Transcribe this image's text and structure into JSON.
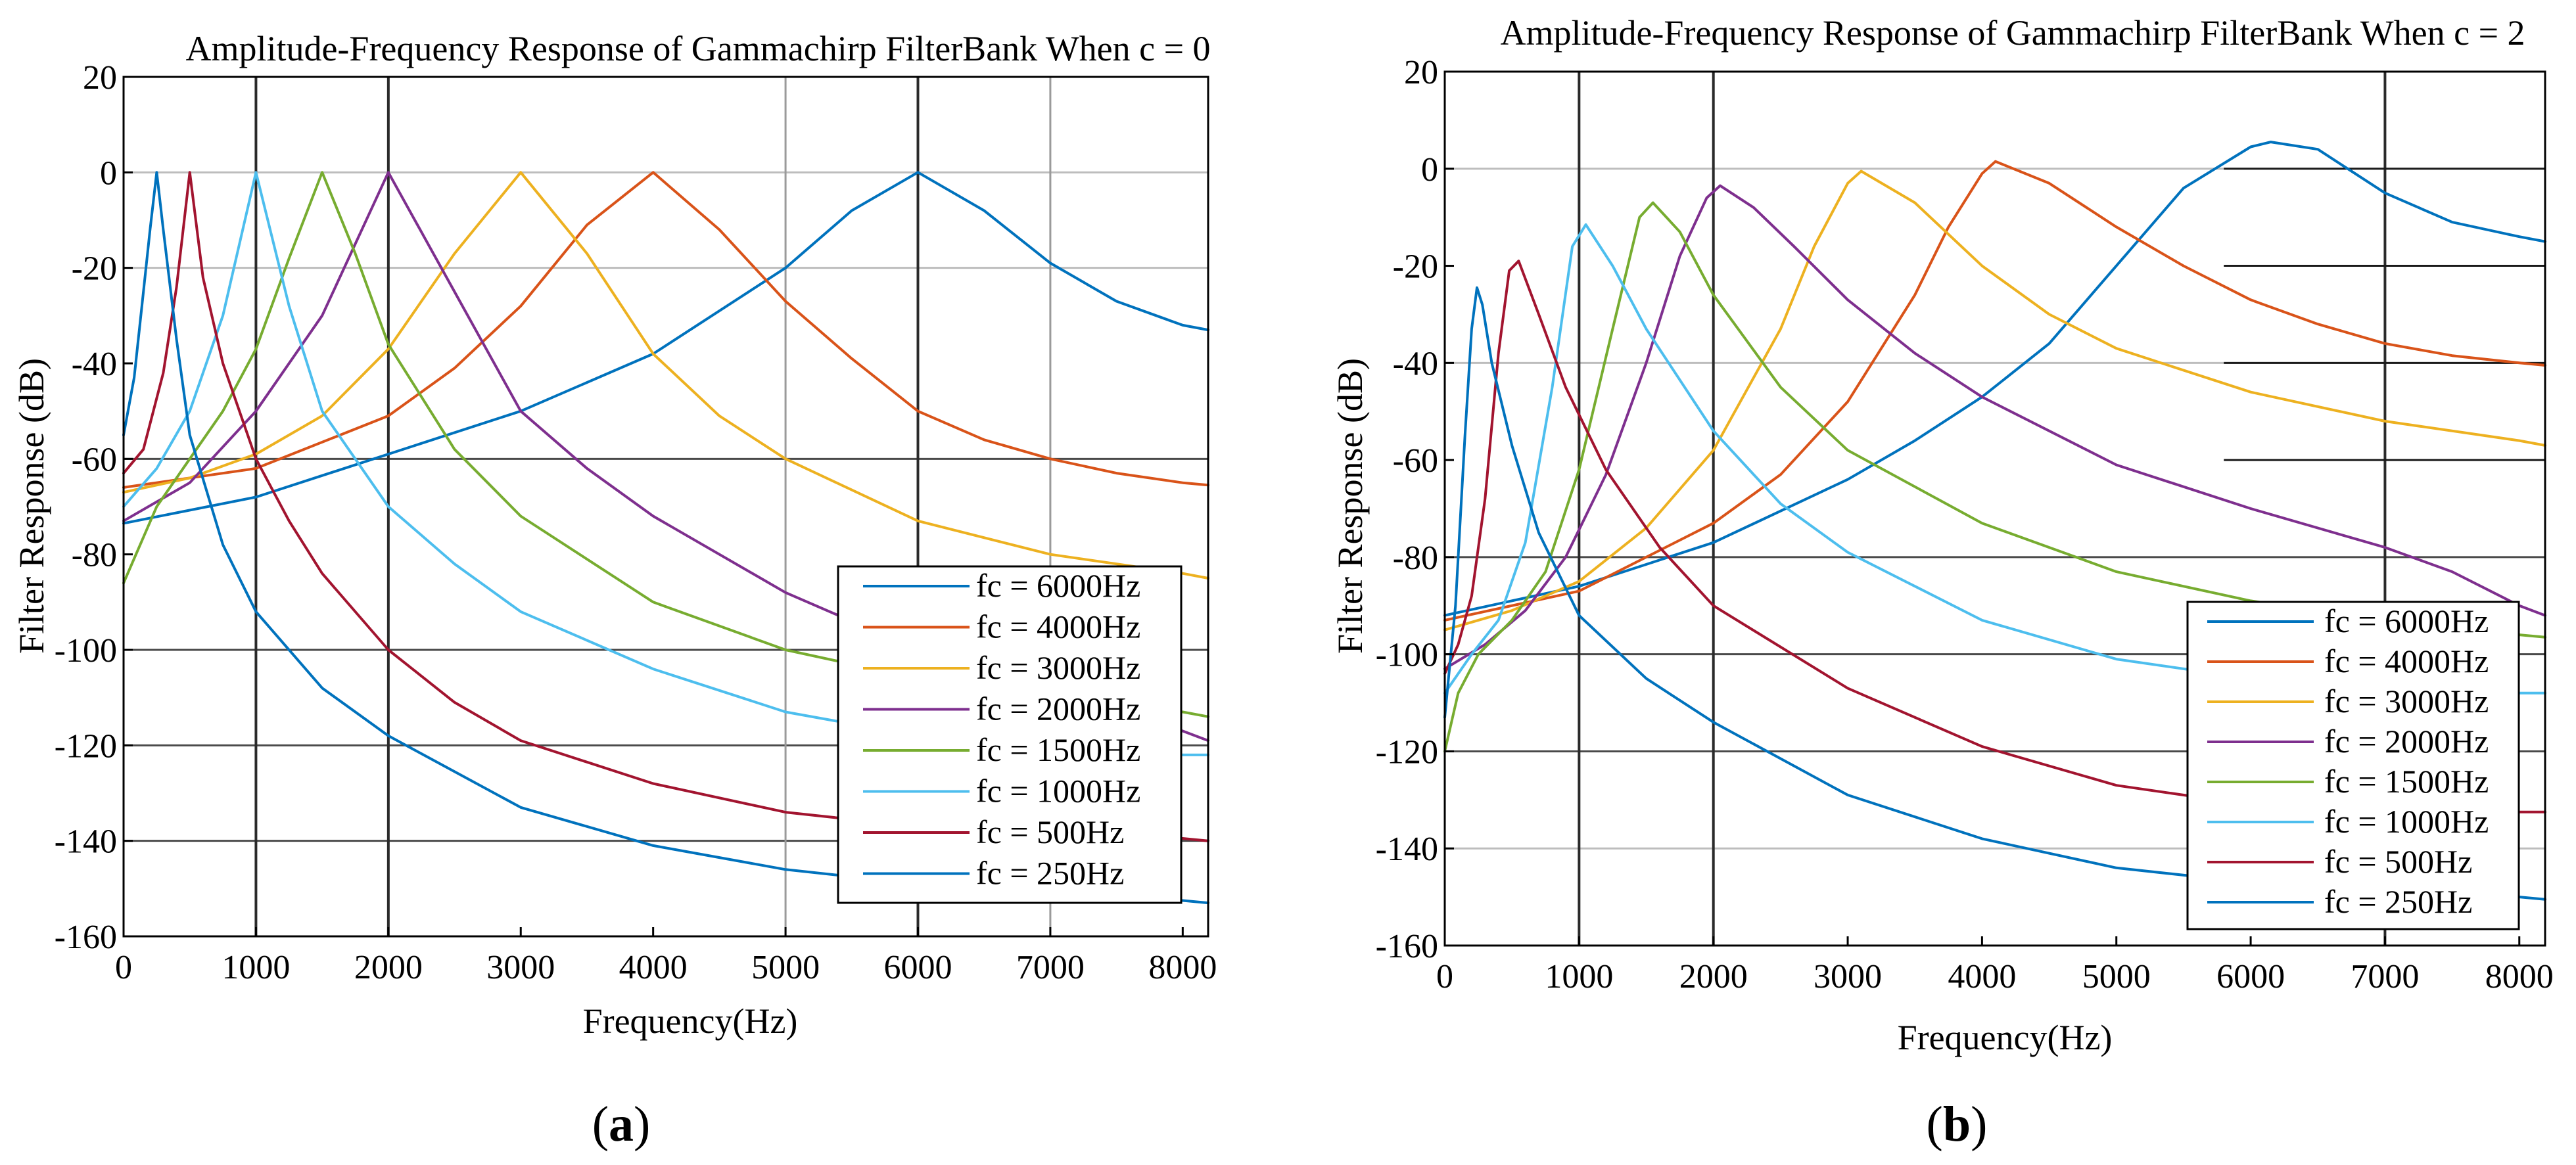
{
  "chart_data": [
    {
      "type": "line",
      "title": "Amplitude-Frequency Response of Gammachirp FilterBank When c = 0",
      "xlabel": "Frequency(Hz)",
      "ylabel": "Filter Response (dB)",
      "panel_label": {
        "open": "(",
        "letter": "a",
        "close": ")"
      },
      "xlim": [
        0,
        8192
      ],
      "ylim": [
        -160,
        20
      ],
      "xticks": [
        0,
        1000,
        2000,
        3000,
        4000,
        5000,
        6000,
        7000,
        8000
      ],
      "xtick_labels": [
        "0",
        "1000",
        "2000",
        "3000",
        "4000",
        "5000",
        "6000",
        "7000",
        "8000"
      ],
      "yticks": [
        20,
        0,
        -20,
        -40,
        -60,
        -80,
        -100,
        -120,
        -140,
        -160
      ],
      "ytick_labels": [
        "20",
        "0",
        "-20",
        "-40",
        "-60",
        "-80",
        "-100",
        "-120",
        "-140",
        "-160"
      ],
      "grid": true,
      "legend_position": "bottom-right",
      "series": [
        {
          "name": "fc = 6000Hz",
          "color": "#0072BD",
          "x": [
            0,
            1000,
            2000,
            3000,
            4000,
            5000,
            5500,
            6000,
            6500,
            7000,
            7500,
            8000,
            8192
          ],
          "y": [
            -73.5,
            -68,
            -59,
            -50,
            -38,
            -20,
            -8,
            0,
            -8,
            -19,
            -27,
            -32,
            -33
          ]
        },
        {
          "name": "fc = 4000Hz",
          "color": "#D95319",
          "x": [
            0,
            1000,
            2000,
            2500,
            3000,
            3500,
            4000,
            4500,
            5000,
            5500,
            6000,
            6500,
            7000,
            7500,
            8000,
            8192
          ],
          "y": [
            -66,
            -62,
            -51,
            -41,
            -28,
            -11,
            0,
            -12,
            -27,
            -39,
            -50,
            -56,
            -60,
            -63,
            -65,
            -65.5
          ]
        },
        {
          "name": "fc = 3000Hz",
          "color": "#EDB120",
          "x": [
            0,
            500,
            1000,
            1500,
            2000,
            2500,
            3000,
            3500,
            4000,
            4500,
            5000,
            6000,
            7000,
            8000,
            8192
          ],
          "y": [
            -67,
            -64,
            -59,
            -51,
            -37,
            -17,
            0,
            -17,
            -38,
            -51,
            -60,
            -73,
            -80,
            -84,
            -85
          ]
        },
        {
          "name": "fc = 2000Hz",
          "color": "#7E2F8E",
          "x": [
            0,
            500,
            1000,
            1500,
            2000,
            2500,
            3000,
            3500,
            4000,
            5000,
            6000,
            7000,
            8000,
            8192
          ],
          "y": [
            -73,
            -65,
            -50,
            -30,
            0,
            -25,
            -50,
            -62,
            -72,
            -88,
            -100,
            -110,
            -117,
            -119
          ]
        },
        {
          "name": "fc = 1500Hz",
          "color": "#77AC30",
          "x": [
            0,
            250,
            500,
            750,
            1000,
            1250,
            1500,
            1750,
            2000,
            2500,
            3000,
            4000,
            5000,
            6000,
            7000,
            8000,
            8192
          ],
          "y": [
            -86,
            -70,
            -60,
            -50,
            -37,
            -18,
            0,
            -17,
            -36,
            -58,
            -72,
            -90,
            -100,
            -106,
            -110,
            -113,
            -114
          ]
        },
        {
          "name": "fc = 1000Hz",
          "color": "#4DBEEE",
          "x": [
            0,
            250,
            500,
            750,
            1000,
            1250,
            1500,
            2000,
            2500,
            3000,
            4000,
            5000,
            6000,
            7000,
            8000,
            8192
          ],
          "y": [
            -70,
            -62,
            -50,
            -30,
            0,
            -28,
            -50,
            -70,
            -82,
            -92,
            -104,
            -113,
            -118,
            -121,
            -122,
            -122
          ]
        },
        {
          "name": "fc = 500Hz",
          "color": "#A2142F",
          "x": [
            0,
            150,
            300,
            400,
            500,
            600,
            750,
            1000,
            1250,
            1500,
            2000,
            2500,
            3000,
            4000,
            5000,
            6000,
            7000,
            8000,
            8192
          ],
          "y": [
            -63,
            -58,
            -42,
            -24,
            0,
            -22,
            -40,
            -60,
            -73,
            -84,
            -100,
            -111,
            -119,
            -128,
            -134,
            -137,
            -138.5,
            -139.5,
            -140
          ]
        },
        {
          "name": "fc = 250Hz",
          "color": "#0072BD",
          "x": [
            0,
            80,
            150,
            200,
            250,
            300,
            400,
            500,
            750,
            1000,
            1500,
            2000,
            3000,
            4000,
            5000,
            6000,
            7000,
            8000,
            8192
          ],
          "y": [
            -55,
            -43,
            -25,
            -12,
            0,
            -12,
            -35,
            -55,
            -78,
            -92,
            -108,
            -118,
            -133,
            -141,
            -146,
            -149,
            -151,
            -152.5,
            -153
          ]
        }
      ],
      "legend_entries": [
        "fc = 6000Hz",
        "fc = 4000Hz",
        "fc = 3000Hz",
        "fc = 2000Hz",
        "fc = 1500Hz",
        "fc = 1000Hz",
        "fc = 500Hz",
        "fc = 250Hz"
      ]
    },
    {
      "type": "line",
      "title": "Amplitude-Frequency Response of Gammachirp FilterBank When c = 2",
      "xlabel": "Frequency(Hz)",
      "ylabel": "Filter Response (dB)",
      "panel_label": {
        "open": "(",
        "letter": "b",
        "close": ")"
      },
      "xlim": [
        0,
        8192
      ],
      "ylim": [
        -160,
        20
      ],
      "xticks": [
        0,
        1000,
        2000,
        3000,
        4000,
        5000,
        6000,
        7000,
        8000
      ],
      "xtick_labels": [
        "0",
        "1000",
        "2000",
        "3000",
        "4000",
        "5000",
        "6000",
        "7000",
        "8000"
      ],
      "yticks": [
        20,
        0,
        -20,
        -40,
        -60,
        -80,
        -100,
        -120,
        -140,
        -160
      ],
      "ytick_labels": [
        "20",
        "0",
        "-20",
        "-40",
        "-60",
        "-80",
        "-100",
        "-120",
        "-140",
        "-160"
      ],
      "grid": true,
      "legend_position": "bottom-right",
      "series": [
        {
          "name": "fc = 6000Hz",
          "color": "#0072BD",
          "x": [
            0,
            1000,
            2000,
            3000,
            3500,
            4000,
            4500,
            5000,
            5500,
            6000,
            6150,
            6500,
            7000,
            7500,
            8000,
            8192
          ],
          "y": [
            -92,
            -86,
            -77,
            -64,
            -56,
            -47,
            -36,
            -20,
            -4,
            4.5,
            5.5,
            4,
            -5,
            -11,
            -14,
            -15
          ]
        },
        {
          "name": "fc = 4000Hz",
          "color": "#D95319",
          "x": [
            0,
            1000,
            2000,
            2500,
            3000,
            3500,
            3750,
            4000,
            4100,
            4500,
            5000,
            5500,
            6000,
            6500,
            7000,
            7500,
            8000,
            8192
          ],
          "y": [
            -93,
            -87,
            -73,
            -63,
            -48,
            -26,
            -12,
            -1,
            1.5,
            -3,
            -12,
            -20,
            -27,
            -32,
            -36,
            -38.5,
            -40,
            -40.5
          ]
        },
        {
          "name": "fc = 3000Hz",
          "color": "#EDB120",
          "x": [
            0,
            500,
            1000,
            1500,
            2000,
            2500,
            2750,
            3000,
            3100,
            3500,
            4000,
            4500,
            5000,
            6000,
            7000,
            8000,
            8192
          ],
          "y": [
            -95,
            -91,
            -85,
            -74,
            -58,
            -33,
            -16,
            -3,
            -0.5,
            -7,
            -20,
            -30,
            -37,
            -46,
            -52,
            -56,
            -57
          ]
        },
        {
          "name": "fc = 2000Hz",
          "color": "#7E2F8E",
          "x": [
            0,
            300,
            600,
            900,
            1200,
            1500,
            1750,
            1950,
            2050,
            2300,
            2600,
            3000,
            3500,
            4000,
            5000,
            6000,
            7000,
            7500,
            8000,
            8192
          ],
          "y": [
            -103,
            -98,
            -91,
            -80,
            -63,
            -40,
            -18,
            -6,
            -3.5,
            -8,
            -16,
            -27,
            -38,
            -47,
            -61,
            -70,
            -78,
            -83,
            -90,
            -92
          ]
        },
        {
          "name": "fc = 1500Hz",
          "color": "#77AC30",
          "x": [
            0,
            100,
            250,
            500,
            750,
            1000,
            1250,
            1450,
            1550,
            1750,
            2000,
            2500,
            3000,
            4000,
            5000,
            6000,
            7000,
            8000,
            8192
          ],
          "y": [
            -120,
            -108,
            -100,
            -93,
            -83,
            -62,
            -33,
            -10,
            -7,
            -13,
            -26,
            -45,
            -58,
            -73,
            -83,
            -89,
            -93,
            -96,
            -96.5
          ]
        },
        {
          "name": "fc = 1000Hz",
          "color": "#4DBEEE",
          "x": [
            0,
            200,
            400,
            600,
            800,
            950,
            1050,
            1250,
            1500,
            2000,
            2500,
            3000,
            4000,
            5000,
            6000,
            7000,
            8000,
            8192
          ],
          "y": [
            -108,
            -100,
            -93,
            -77,
            -45,
            -16,
            -11.5,
            -20,
            -33,
            -54,
            -69,
            -79,
            -93,
            -101,
            -105,
            -107,
            -108,
            -108
          ]
        },
        {
          "name": "fc = 500Hz",
          "color": "#A2142F",
          "x": [
            0,
            100,
            200,
            300,
            400,
            480,
            550,
            700,
            900,
            1200,
            1600,
            2000,
            3000,
            4000,
            5000,
            6000,
            7000,
            8000,
            8192
          ],
          "y": [
            -104,
            -98,
            -88,
            -68,
            -38,
            -21,
            -19,
            -30,
            -45,
            -62,
            -78,
            -90,
            -107,
            -119,
            -127,
            -131,
            -132,
            -132.5,
            -132.5
          ]
        },
        {
          "name": "fc = 250Hz",
          "color": "#0072BD",
          "x": [
            0,
            80,
            150,
            200,
            240,
            280,
            350,
            500,
            700,
            1000,
            1500,
            2000,
            3000,
            4000,
            5000,
            6000,
            7000,
            8000,
            8192
          ],
          "y": [
            -113,
            -90,
            -55,
            -33,
            -24.5,
            -28,
            -40,
            -57,
            -75,
            -92,
            -105,
            -114,
            -129,
            -138,
            -144,
            -147,
            -149,
            -150,
            -150.5
          ]
        }
      ],
      "legend_entries": [
        "fc = 6000Hz",
        "fc = 4000Hz",
        "fc = 3000Hz",
        "fc = 2000Hz",
        "fc = 1500Hz",
        "fc = 1000Hz",
        "fc = 500Hz",
        "fc = 250Hz"
      ]
    }
  ]
}
